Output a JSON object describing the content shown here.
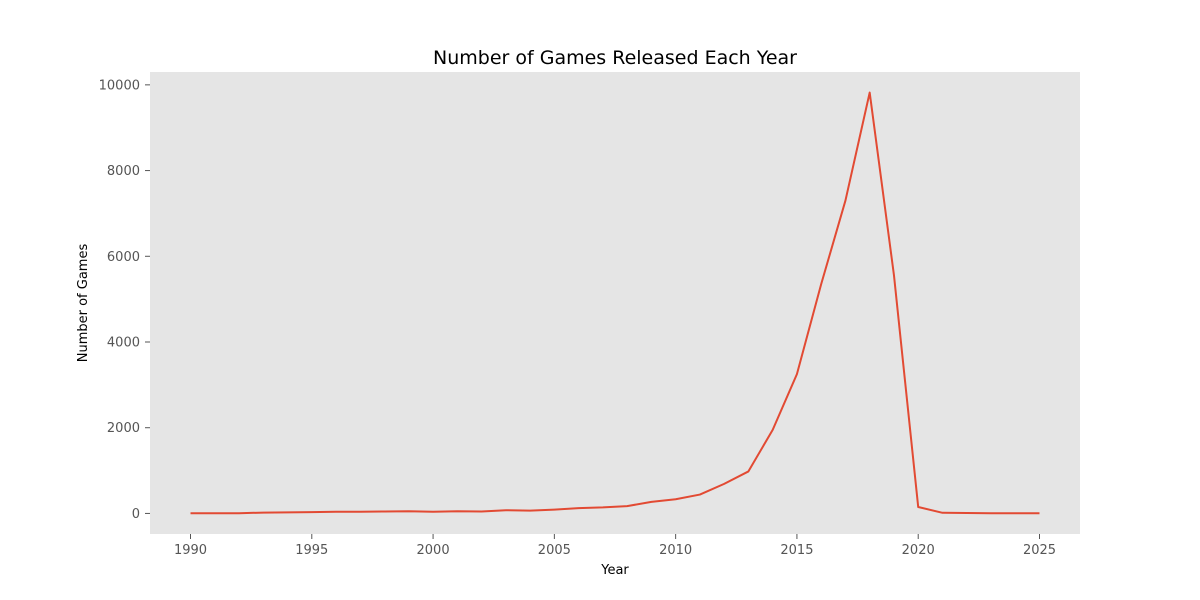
{
  "chart_data": {
    "type": "line",
    "title": "Number of Games Released Each Year",
    "xlabel": "Year",
    "ylabel": "Number of Games",
    "xlim": [
      1988.33,
      2026.67
    ],
    "ylim": [
      -480,
      10300
    ],
    "xticks": [
      1990,
      1995,
      2000,
      2005,
      2010,
      2015,
      2020,
      2025
    ],
    "yticks": [
      0,
      2000,
      4000,
      6000,
      8000,
      10000
    ],
    "grid": false,
    "legend": "none",
    "colors": {
      "line": "#E24A33",
      "plot_background": "#E5E5E5",
      "figure_background": "#FFFFFF"
    },
    "series": [
      {
        "x": [
          1990,
          1991,
          1992,
          1993,
          1994,
          1995,
          1996,
          1997,
          1998,
          1999,
          2000,
          2001,
          2002,
          2003,
          2004,
          2005,
          2006,
          2007,
          2008,
          2009,
          2010,
          2011,
          2012,
          2013,
          2014,
          2015,
          2016,
          2017,
          2018,
          2019,
          2020,
          2021,
          2022,
          2023,
          2024,
          2025
        ],
        "values": [
          5,
          5,
          5,
          20,
          25,
          30,
          40,
          40,
          45,
          50,
          40,
          50,
          45,
          75,
          65,
          90,
          125,
          140,
          170,
          270,
          330,
          440,
          690,
          980,
          1950,
          3250,
          5350,
          7300,
          9820,
          5560,
          150,
          15,
          10,
          5,
          5,
          5
        ]
      }
    ]
  }
}
